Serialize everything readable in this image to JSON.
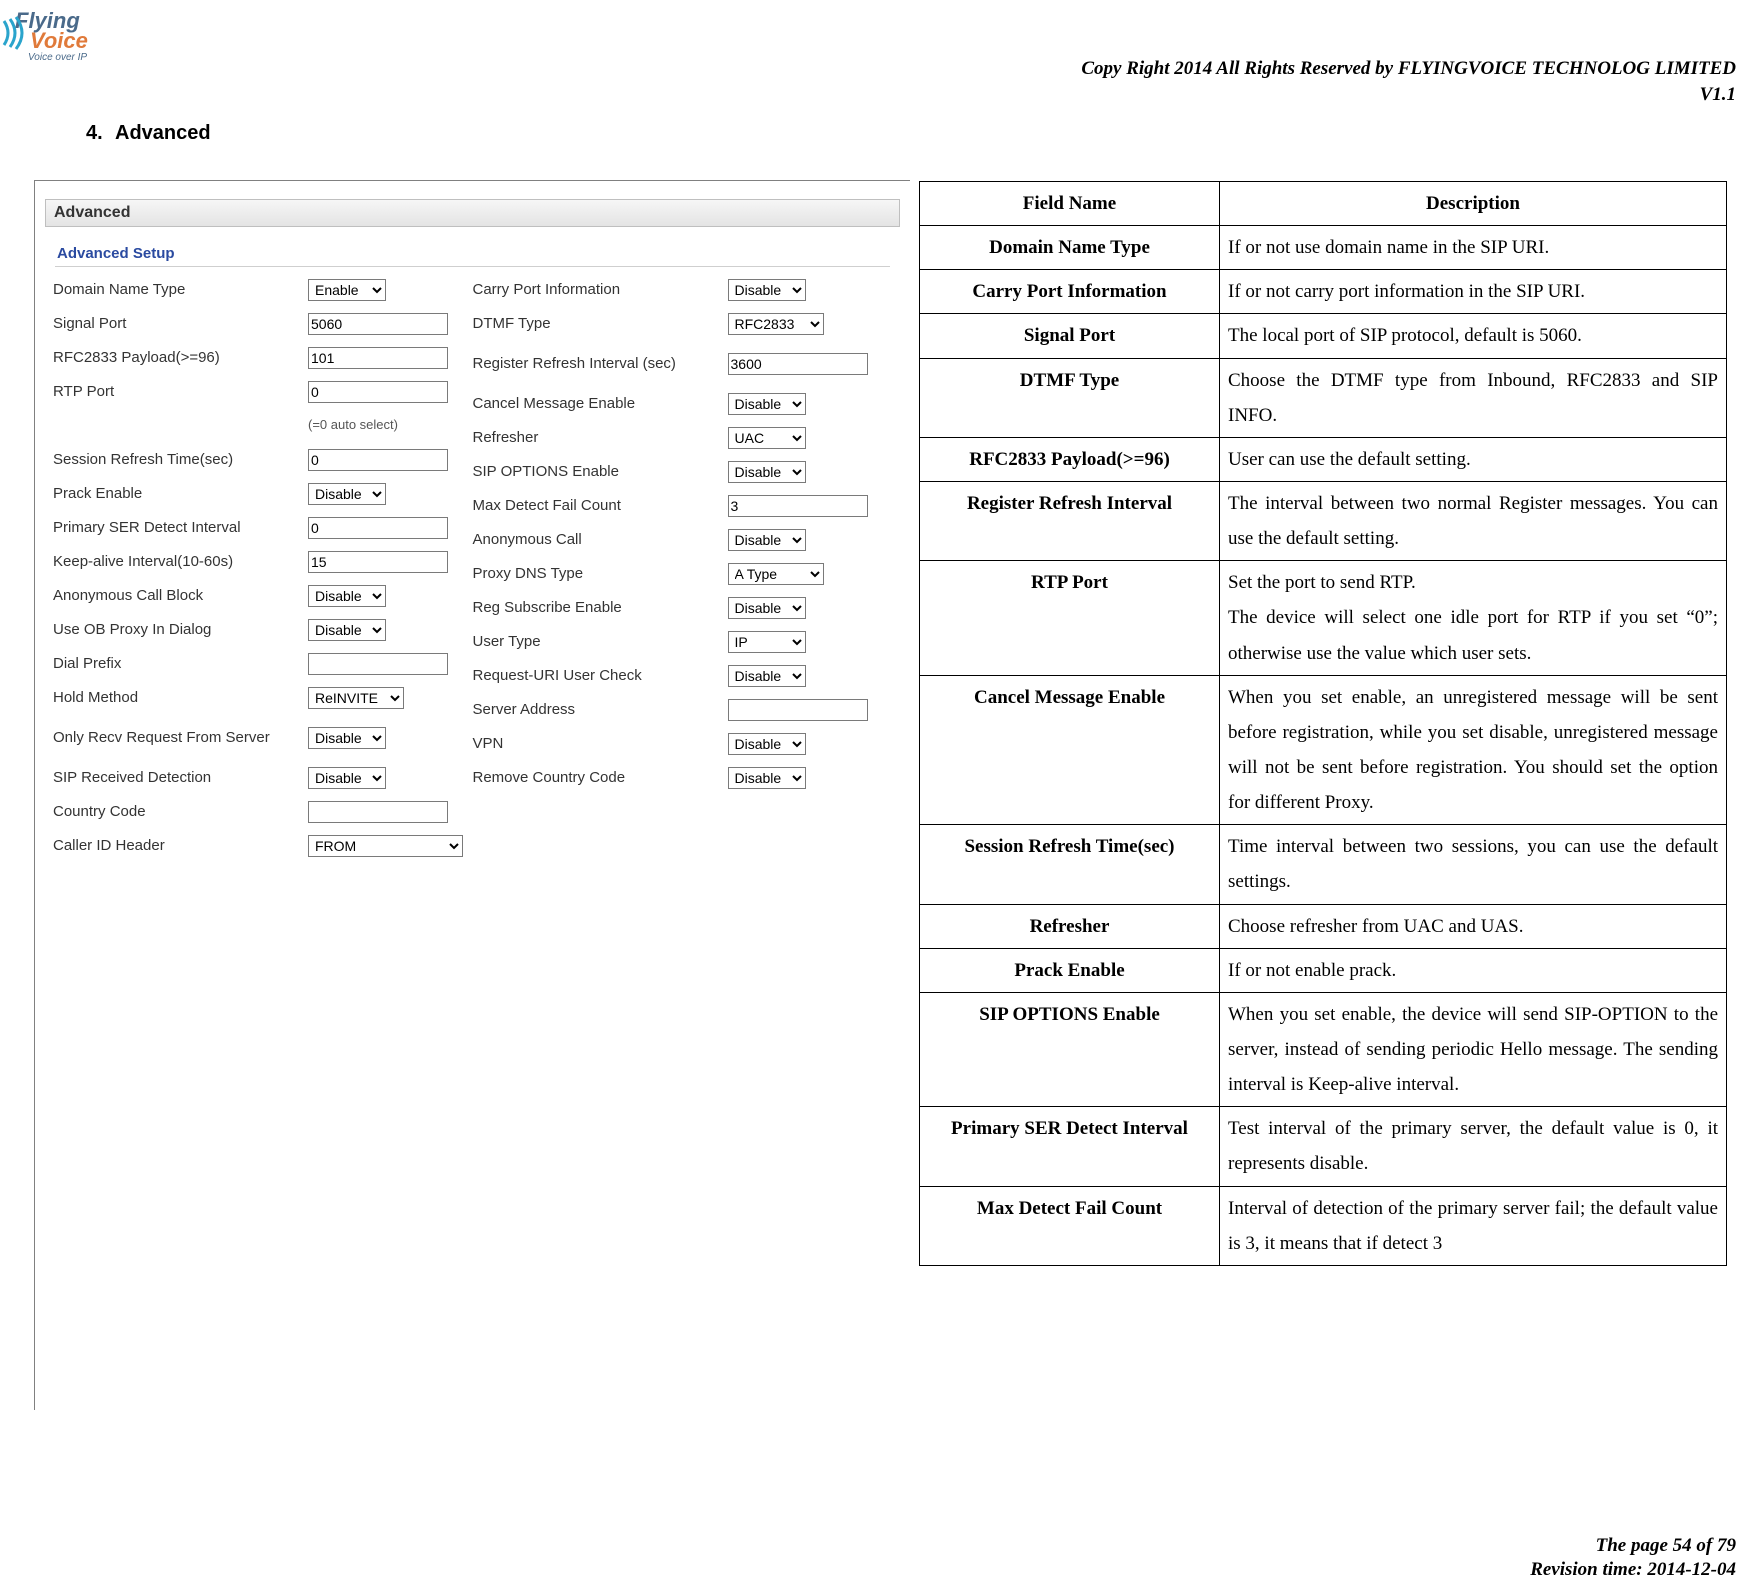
{
  "header": {
    "copyright": "Copy Right 2014 All Rights Reserved by FLYINGVOICE TECHNOLOG LIMITED",
    "version": "V1.1"
  },
  "logo": {
    "flying": "Flying",
    "voice": "Voice",
    "sub": "Voice over IP"
  },
  "section": {
    "num": "4.",
    "title": "Advanced"
  },
  "screenshot": {
    "panel_title": "Advanced",
    "fieldset_title": "Advanced Setup",
    "left": [
      {
        "label": "Domain Name Type",
        "ctrl": "select",
        "value": "Enable",
        "cls": "w-en"
      },
      {
        "label": "Signal Port",
        "ctrl": "text",
        "value": "5060",
        "cls": "w-num"
      },
      {
        "label": "RFC2833 Payload(>=96)",
        "ctrl": "text",
        "value": "101",
        "cls": "w-num"
      },
      {
        "label": "RTP Port",
        "ctrl": "text",
        "value": "0",
        "cls": "w-num",
        "note": "(=0 auto select)"
      },
      {
        "label": "Session Refresh Time(sec)",
        "ctrl": "text",
        "value": "0",
        "cls": "w-num"
      },
      {
        "label": "Prack Enable",
        "ctrl": "select",
        "value": "Disable",
        "cls": "w-en"
      },
      {
        "label": "Primary SER Detect Interval",
        "ctrl": "text",
        "value": "0",
        "cls": "w-num"
      },
      {
        "label": "Keep-alive Interval(10-60s)",
        "ctrl": "text",
        "value": "15",
        "cls": "w-num"
      },
      {
        "label": "Anonymous Call Block",
        "ctrl": "select",
        "value": "Disable",
        "cls": "w-en"
      },
      {
        "label": "Use OB Proxy In Dialog",
        "ctrl": "select",
        "value": "Disable",
        "cls": "w-en"
      },
      {
        "label": "Dial Prefix",
        "ctrl": "text",
        "value": "",
        "cls": "w-txt"
      },
      {
        "label": "Hold Method",
        "ctrl": "select",
        "value": "ReINVITE",
        "cls": "w-med"
      },
      {
        "label": "Only Recv Request From Server",
        "ctrl": "select",
        "value": "Disable",
        "cls": "w-en",
        "two": true
      },
      {
        "label": "SIP Received Detection",
        "ctrl": "select",
        "value": "Disable",
        "cls": "w-en"
      },
      {
        "label": "Country Code",
        "ctrl": "text",
        "value": "",
        "cls": "w-txt"
      },
      {
        "label": "Caller ID Header",
        "ctrl": "select",
        "value": "FROM",
        "cls": "w-from"
      }
    ],
    "right": [
      {
        "label": "Carry Port Information",
        "ctrl": "select",
        "value": "Disable",
        "cls": "w-en"
      },
      {
        "label": "DTMF Type",
        "ctrl": "select",
        "value": "RFC2833",
        "cls": "w-med"
      },
      {
        "label": "Register Refresh Interval (sec)",
        "ctrl": "text",
        "value": "3600",
        "cls": "w-num",
        "two": true
      },
      {
        "label": "Cancel Message Enable",
        "ctrl": "select",
        "value": "Disable",
        "cls": "w-en"
      },
      {
        "label": "Refresher",
        "ctrl": "select",
        "value": "UAC",
        "cls": "w-en"
      },
      {
        "label": "SIP OPTIONS Enable",
        "ctrl": "select",
        "value": "Disable",
        "cls": "w-en"
      },
      {
        "label": "Max Detect Fail Count",
        "ctrl": "text",
        "value": "3",
        "cls": "w-num"
      },
      {
        "label": "Anonymous Call",
        "ctrl": "select",
        "value": "Disable",
        "cls": "w-en"
      },
      {
        "label": "Proxy DNS Type",
        "ctrl": "select",
        "value": "A Type",
        "cls": "w-med"
      },
      {
        "label": "Reg Subscribe Enable",
        "ctrl": "select",
        "value": "Disable",
        "cls": "w-en"
      },
      {
        "label": "User Type",
        "ctrl": "select",
        "value": "IP",
        "cls": "w-en"
      },
      {
        "label": "Request-URI User Check",
        "ctrl": "select",
        "value": "Disable",
        "cls": "w-en"
      },
      {
        "label": "Server Address",
        "ctrl": "text",
        "value": "",
        "cls": "w-txt"
      },
      {
        "label": "VPN",
        "ctrl": "select",
        "value": "Disable",
        "cls": "w-en"
      },
      {
        "label": "Remove Country Code",
        "ctrl": "select",
        "value": "Disable",
        "cls": "w-en"
      }
    ]
  },
  "desc_table": {
    "head_name": "Field Name",
    "head_desc": "Description",
    "rows": [
      {
        "name": "Domain Name Type",
        "desc": "If or not use domain name in the SIP URI."
      },
      {
        "name": "Carry Port Information",
        "desc": "If or not carry port information in the SIP URI."
      },
      {
        "name": "Signal Port",
        "desc": "The local port of SIP protocol, default is 5060."
      },
      {
        "name": "DTMF Type",
        "desc": "Choose the DTMF type from Inbound, RFC2833 and SIP INFO."
      },
      {
        "name": "RFC2833 Payload(>=96)",
        "desc": "User can use the default setting."
      },
      {
        "name": "Register Refresh Interval",
        "desc": "The interval between two normal Register messages. You can use the default setting."
      },
      {
        "name": "RTP Port",
        "desc": "Set the port to send RTP.\nThe device will select one idle port for RTP if you set “0”; otherwise use the value which user sets."
      },
      {
        "name": "Cancel Message Enable",
        "desc": "When you set enable, an unregistered message will be sent before registration, while you set disable, unregistered message will not be sent before registration. You should set the option for different Proxy."
      },
      {
        "name": "Session Refresh Time(sec)",
        "desc": "Time interval between two sessions, you can use the default settings."
      },
      {
        "name": "Refresher",
        "desc": "Choose refresher from UAC and UAS."
      },
      {
        "name": "Prack Enable",
        "desc": "If or not enable prack."
      },
      {
        "name": "SIP OPTIONS Enable",
        "desc": "When you set enable, the device will send SIP-OPTION to the server, instead of sending periodic Hello message. The sending interval is Keep-alive interval."
      },
      {
        "name": "Primary SER Detect Interval",
        "desc": "Test interval of the primary server, the default value is 0, it represents disable."
      },
      {
        "name": "Max Detect Fail Count",
        "desc": "Interval of detection of the primary server fail; the default value is 3, it means that if detect 3"
      }
    ]
  },
  "footer": {
    "page": "The page 54 of 79",
    "rev": "Revision time: 2014-12-04"
  }
}
